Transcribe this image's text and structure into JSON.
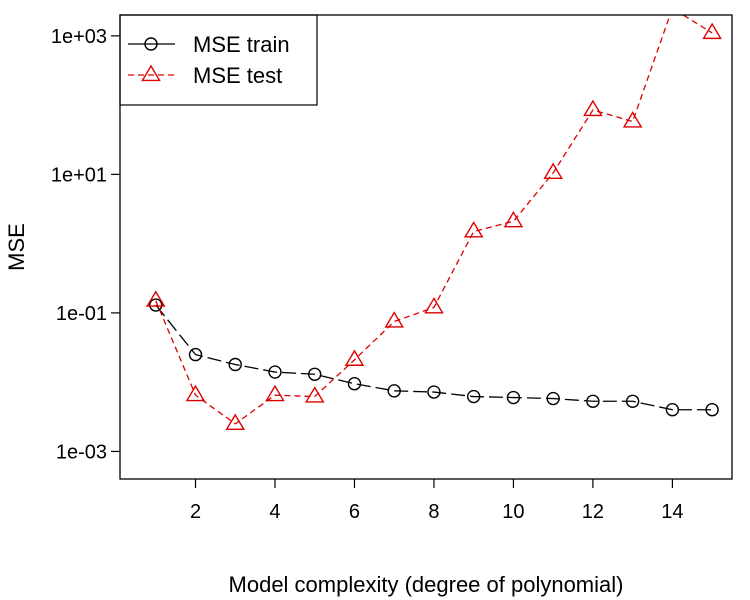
{
  "chart_data": {
    "type": "line",
    "title": "",
    "xlabel": "Model complexity (degree of polynomial)",
    "ylabel": "MSE",
    "y_scale": "log",
    "xlim": [
      0.1,
      15.5
    ],
    "ylim": [
      0.0004,
      2000
    ],
    "x_ticks": [
      2,
      4,
      6,
      8,
      10,
      12,
      14
    ],
    "x_tick_labels": [
      "2",
      "4",
      "6",
      "8",
      "10",
      "12",
      "14"
    ],
    "y_ticks": [
      0.001,
      0.1,
      10,
      1000
    ],
    "y_tick_labels": [
      "1e-03",
      "1e-01",
      "1e+01",
      "1e+03"
    ],
    "grid": false,
    "legend_position": "top-left",
    "x": [
      1,
      2,
      3,
      4,
      5,
      6,
      7,
      8,
      9,
      10,
      11,
      12,
      13,
      14,
      15
    ],
    "series": [
      {
        "name": "MSE train",
        "color": "#000000",
        "marker": "circle",
        "line_style": "dashed",
        "values": [
          0.13,
          0.025,
          0.018,
          0.014,
          0.013,
          0.0095,
          0.0075,
          0.0072,
          0.0062,
          0.006,
          0.0058,
          0.0053,
          0.0053,
          0.004,
          0.004
        ]
      },
      {
        "name": "MSE test",
        "color": "#dd0000",
        "marker": "triangle",
        "line_style": "dashed",
        "values": [
          0.15,
          0.0065,
          0.0025,
          0.0065,
          0.0062,
          0.021,
          0.075,
          0.12,
          1.5,
          2.1,
          10.5,
          85,
          58,
          2500,
          1100
        ]
      }
    ]
  }
}
